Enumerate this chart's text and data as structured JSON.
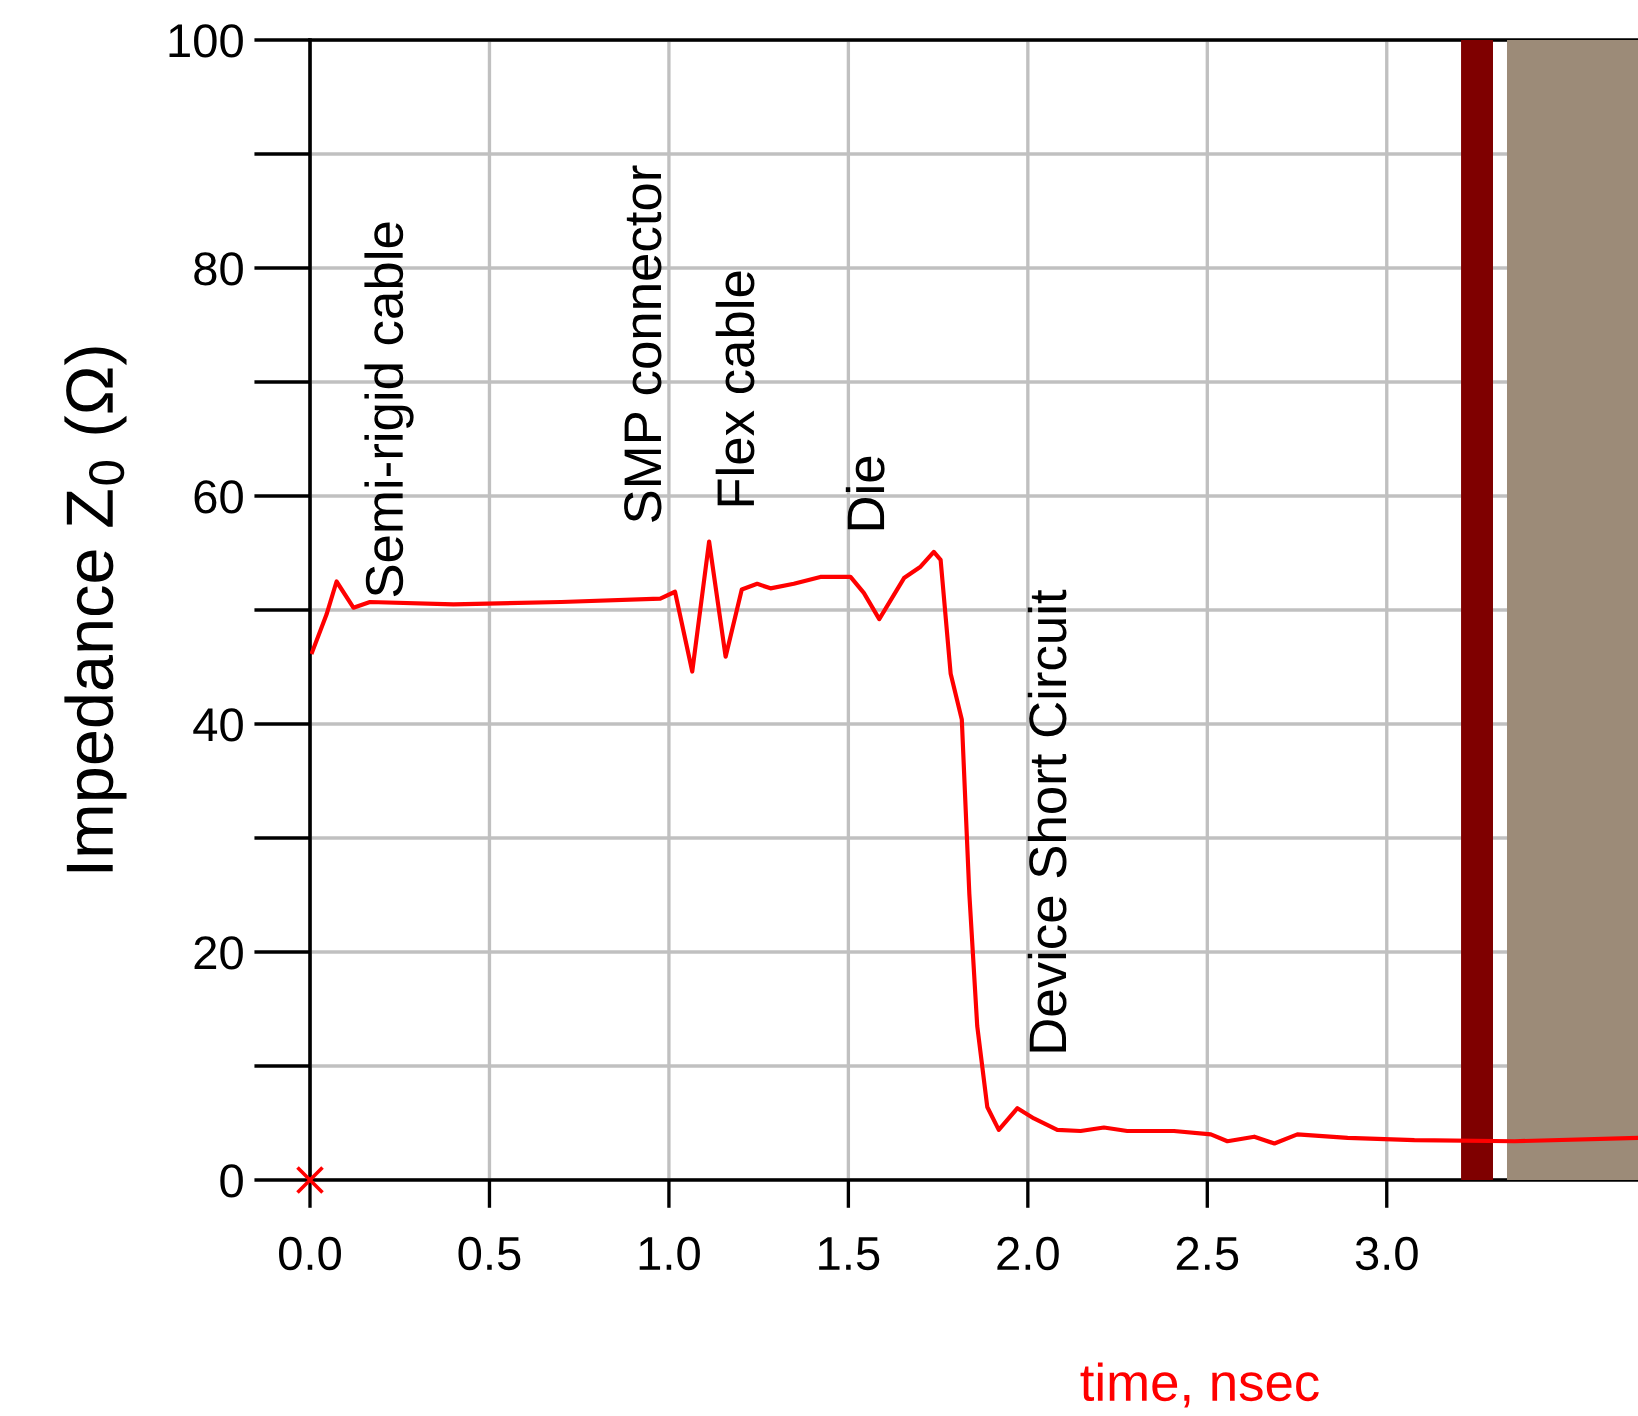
{
  "chart_data": {
    "type": "line",
    "xlabel": "time, nsec",
    "ylabel": "Impedance Z$_{0}$ (Ω)",
    "xlim": [
      0,
      3.7
    ],
    "ylim": [
      0,
      100
    ],
    "xticks": [
      {
        "value": 0,
        "label": "0.0"
      },
      0.5,
      {
        "value": 1,
        "label": "1.0"
      },
      1.5,
      {
        "value": 2,
        "label": "2.0"
      },
      2.5,
      {
        "value": 3,
        "label": "3.0"
      }
    ],
    "yticks": [
      0,
      {
        "value": 10,
        "label": null
      },
      20,
      {
        "value": 30,
        "label": null
      },
      40,
      {
        "value": 50,
        "label": null
      },
      60,
      {
        "value": 70,
        "label": null
      },
      80,
      {
        "value": 90,
        "label": null
      },
      100
    ],
    "grid": true,
    "series": [
      {
        "color": "#ff0000",
        "marker": "none",
        "x": [
          0.006,
          0.046,
          0.074,
          0.121,
          0.167,
          0.4,
          0.7,
          0.976,
          1.017,
          1.065,
          1.112,
          1.158,
          1.203,
          1.246,
          1.283,
          1.348,
          1.422,
          1.506,
          1.543,
          1.586,
          1.655,
          1.701,
          1.738,
          1.757,
          1.785,
          1.816,
          1.837,
          1.859,
          1.887,
          1.919,
          1.971,
          2.017,
          2.082,
          2.147,
          2.212,
          2.277,
          2.407,
          2.51,
          2.556,
          2.631,
          2.687,
          2.751,
          2.891,
          3.077,
          3.356,
          3.699
        ],
        "values": [
          46.3,
          49.6,
          52.5,
          50.2,
          50.7,
          50.5,
          50.7,
          51.0,
          51.6,
          44.6,
          56.0,
          45.9,
          51.8,
          52.3,
          51.9,
          52.3,
          52.9,
          52.9,
          51.5,
          49.2,
          52.8,
          53.8,
          55.1,
          54.4,
          44.4,
          40.4,
          25.1,
          13.5,
          6.4,
          4.4,
          6.3,
          5.4,
          4.4,
          4.3,
          4.6,
          4.3,
          4.3,
          4.0,
          3.4,
          3.8,
          3.2,
          4.0,
          3.7,
          3.5,
          3.4,
          3.7
        ]
      },
      {
        "type": "scatter",
        "color": "#ff0000",
        "marker": "cross",
        "x": [
          0
        ],
        "values": [
          0
        ]
      }
    ],
    "bands": [
      {
        "axis": "x",
        "from": 3.207,
        "to": 3.296,
        "color": "#7f0000"
      },
      {
        "axis": "x",
        "from": 3.335,
        "to": 3.7,
        "color": "#9c8b78"
      }
    ],
    "annotations": [
      "Semi-rigid cable",
      "SMP connector",
      "Flex cable",
      "Die",
      "Device Short Circuit"
    ]
  }
}
